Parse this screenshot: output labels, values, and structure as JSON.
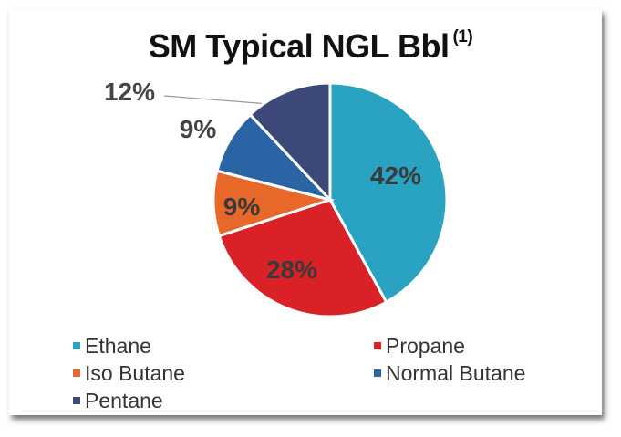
{
  "chart_data": {
    "type": "pie",
    "title": "SM Typical NGL Bbl",
    "title_superscript": "(1)",
    "slices": [
      {
        "name": "Ethane",
        "value": 42,
        "label": "42%",
        "color": "#2aa3c2"
      },
      {
        "name": "Propane",
        "value": 28,
        "label": "28%",
        "color": "#da2128"
      },
      {
        "name": "Iso Butane",
        "value": 9,
        "label": "9%",
        "color": "#e8682a"
      },
      {
        "name": "Normal Butane",
        "value": 9,
        "label": "9%",
        "color": "#2b64a5"
      },
      {
        "name": "Pentane",
        "value": 12,
        "label": "12%",
        "color": "#3b4878"
      }
    ],
    "legend_position": "bottom"
  }
}
